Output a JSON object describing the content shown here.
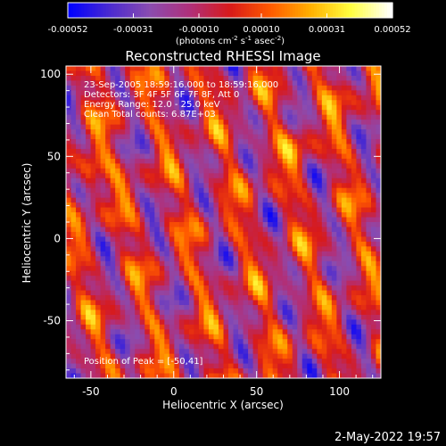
{
  "chart_data": {
    "type": "heatmap",
    "title": "Reconstructed RHESSI Image",
    "xlabel": "Heliocentric X (arcsec)",
    "ylabel": "Heliocentric Y (arcsec)",
    "xlim": [
      -65,
      125
    ],
    "ylim": [
      -85,
      105
    ],
    "x_ticks": [
      -50,
      0,
      50,
      100
    ],
    "y_ticks": [
      -50,
      0,
      50,
      100
    ],
    "colorbar": {
      "range": [
        -0.00052,
        0.00052
      ],
      "tick_labels": [
        "-0.00052",
        "-0.00031",
        "-0.00010",
        "0.00010",
        "0.00031",
        "0.00052"
      ],
      "units_prefix": "(photons cm",
      "units_sup1": "-2",
      "units_mid1": " s",
      "units_sup2": "-1",
      "units_mid2": " asec",
      "units_sup3": "-2",
      "units_suffix": ")",
      "colors": [
        "#0000ff",
        "#4a2ad0",
        "#8a4cb0",
        "#b0307a",
        "#d81a1a",
        "#ff5a00",
        "#ffb000",
        "#ffff40",
        "#ffffff"
      ]
    },
    "annotations": [
      "23-Sep-2005 18:59:16.000 to 18:59:16.000",
      "Detectors: 3F 4F 5F 6F 7F 8F, Att 0",
      "Energy Range: 12.0 - 25.0 keV",
      "Clean     Total counts: 6.87E+03"
    ],
    "peak_label": "Position of Peak = [-50,41]",
    "peak_position": [
      -50,
      41
    ],
    "timestamp": "2-May-2022 19:57"
  }
}
